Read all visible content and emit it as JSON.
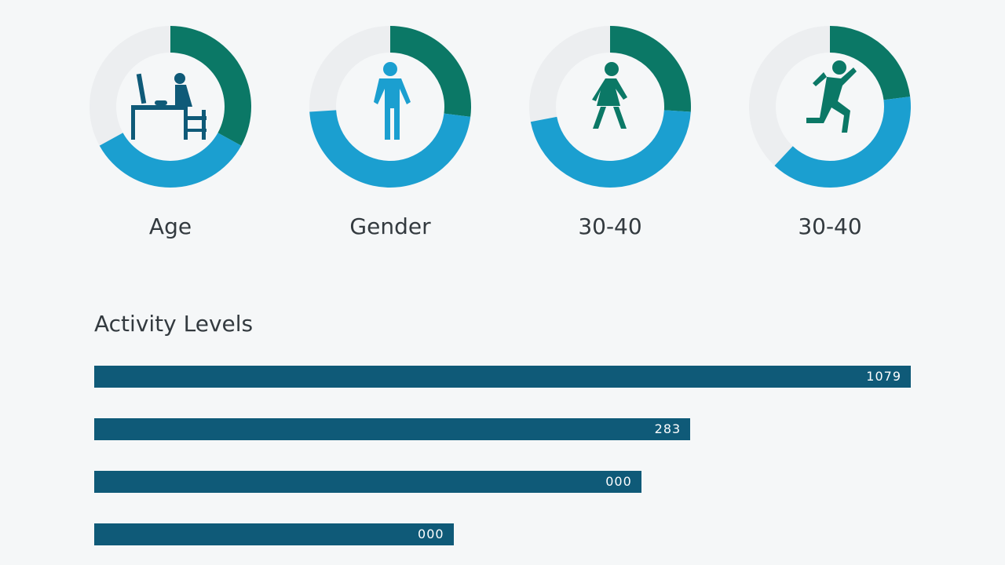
{
  "colors": {
    "green": "#0b7866",
    "blue": "#1b9fd0",
    "track": "#eceef0",
    "bar": "#0f5a78",
    "icon_dark": "#0f5a78",
    "icon_blue": "#1b9fd0",
    "icon_green": "#0b7866"
  },
  "chart_data": [
    {
      "type": "pie",
      "subtype": "donut",
      "title": "Age",
      "icon": "person-at-desk-icon",
      "series": [
        {
          "name": "green",
          "value": 33
        },
        {
          "name": "blue",
          "value": 34
        }
      ],
      "unit": "percent"
    },
    {
      "type": "pie",
      "subtype": "donut",
      "title": "Gender",
      "icon": "standing-man-icon",
      "series": [
        {
          "name": "green",
          "value": 27
        },
        {
          "name": "blue",
          "value": 47
        }
      ],
      "unit": "percent"
    },
    {
      "type": "pie",
      "subtype": "donut",
      "title": "30-40",
      "icon": "walking-woman-icon",
      "series": [
        {
          "name": "green",
          "value": 26
        },
        {
          "name": "blue",
          "value": 46
        }
      ],
      "unit": "percent"
    },
    {
      "type": "pie",
      "subtype": "donut",
      "title": "30-40",
      "icon": "running-person-icon",
      "series": [
        {
          "name": "green",
          "value": 23
        },
        {
          "name": "blue",
          "value": 39
        }
      ],
      "unit": "percent"
    },
    {
      "type": "bar",
      "orientation": "horizontal",
      "title": "Activity Levels",
      "labels": [
        "1079",
        "283",
        "000",
        "000"
      ],
      "values": [
        100,
        73,
        67,
        44
      ],
      "value_unit": "percent of max"
    }
  ]
}
